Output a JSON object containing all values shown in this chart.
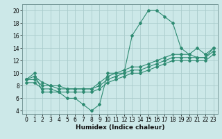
{
  "title": "",
  "xlabel": "Humidex (Indice chaleur)",
  "ylabel": "",
  "xlim": [
    -0.5,
    23.5
  ],
  "ylim": [
    3.5,
    21
  ],
  "yticks": [
    4,
    6,
    8,
    10,
    12,
    14,
    16,
    18,
    20
  ],
  "xticks": [
    0,
    1,
    2,
    3,
    4,
    5,
    6,
    7,
    8,
    9,
    10,
    11,
    12,
    13,
    14,
    15,
    16,
    17,
    18,
    19,
    20,
    21,
    22,
    23
  ],
  "bg_color": "#cce8e8",
  "line_color": "#2e8b72",
  "grid_color": "#aacccc",
  "lines": [
    {
      "x": [
        0,
        1,
        2,
        3,
        4,
        5,
        6,
        7,
        8,
        9,
        10,
        11,
        12,
        13,
        14,
        15,
        16,
        17,
        18,
        19,
        20,
        21,
        22,
        23
      ],
      "y": [
        9,
        10,
        7,
        7,
        7,
        6,
        6,
        5,
        4,
        5,
        10,
        10,
        10,
        16,
        18,
        20,
        20,
        19,
        18,
        14,
        13,
        14,
        13,
        14
      ]
    },
    {
      "x": [
        0,
        1,
        2,
        3,
        4,
        5,
        6,
        7,
        8,
        9,
        10,
        11,
        12,
        13,
        14,
        15,
        16,
        17,
        18,
        19,
        20,
        21,
        22,
        23
      ],
      "y": [
        8.5,
        8.5,
        7.5,
        7.5,
        7.0,
        7.0,
        7.0,
        7.0,
        7.0,
        7.5,
        8.5,
        9.0,
        9.5,
        10.0,
        10.0,
        10.5,
        11.0,
        11.5,
        12.0,
        12.0,
        12.0,
        12.0,
        12.0,
        13.0
      ]
    },
    {
      "x": [
        0,
        1,
        2,
        3,
        4,
        5,
        6,
        7,
        8,
        9,
        10,
        11,
        12,
        13,
        14,
        15,
        16,
        17,
        18,
        19,
        20,
        21,
        22,
        23
      ],
      "y": [
        9.0,
        9.0,
        8.0,
        8.0,
        7.5,
        7.5,
        7.5,
        7.5,
        7.5,
        8.0,
        9.0,
        9.5,
        10.0,
        10.5,
        10.5,
        11.0,
        11.5,
        12.0,
        12.5,
        12.5,
        12.5,
        12.5,
        12.5,
        13.5
      ]
    },
    {
      "x": [
        0,
        1,
        2,
        3,
        4,
        5,
        6,
        7,
        8,
        9,
        10,
        11,
        12,
        13,
        14,
        15,
        16,
        17,
        18,
        19,
        20,
        21,
        22,
        23
      ],
      "y": [
        9.0,
        9.5,
        8.5,
        8.0,
        8.0,
        7.5,
        7.5,
        7.5,
        7.5,
        8.5,
        9.5,
        10.0,
        10.5,
        11.0,
        11.0,
        11.5,
        12.0,
        12.5,
        13.0,
        13.0,
        13.0,
        12.5,
        12.5,
        14.0
      ]
    }
  ]
}
